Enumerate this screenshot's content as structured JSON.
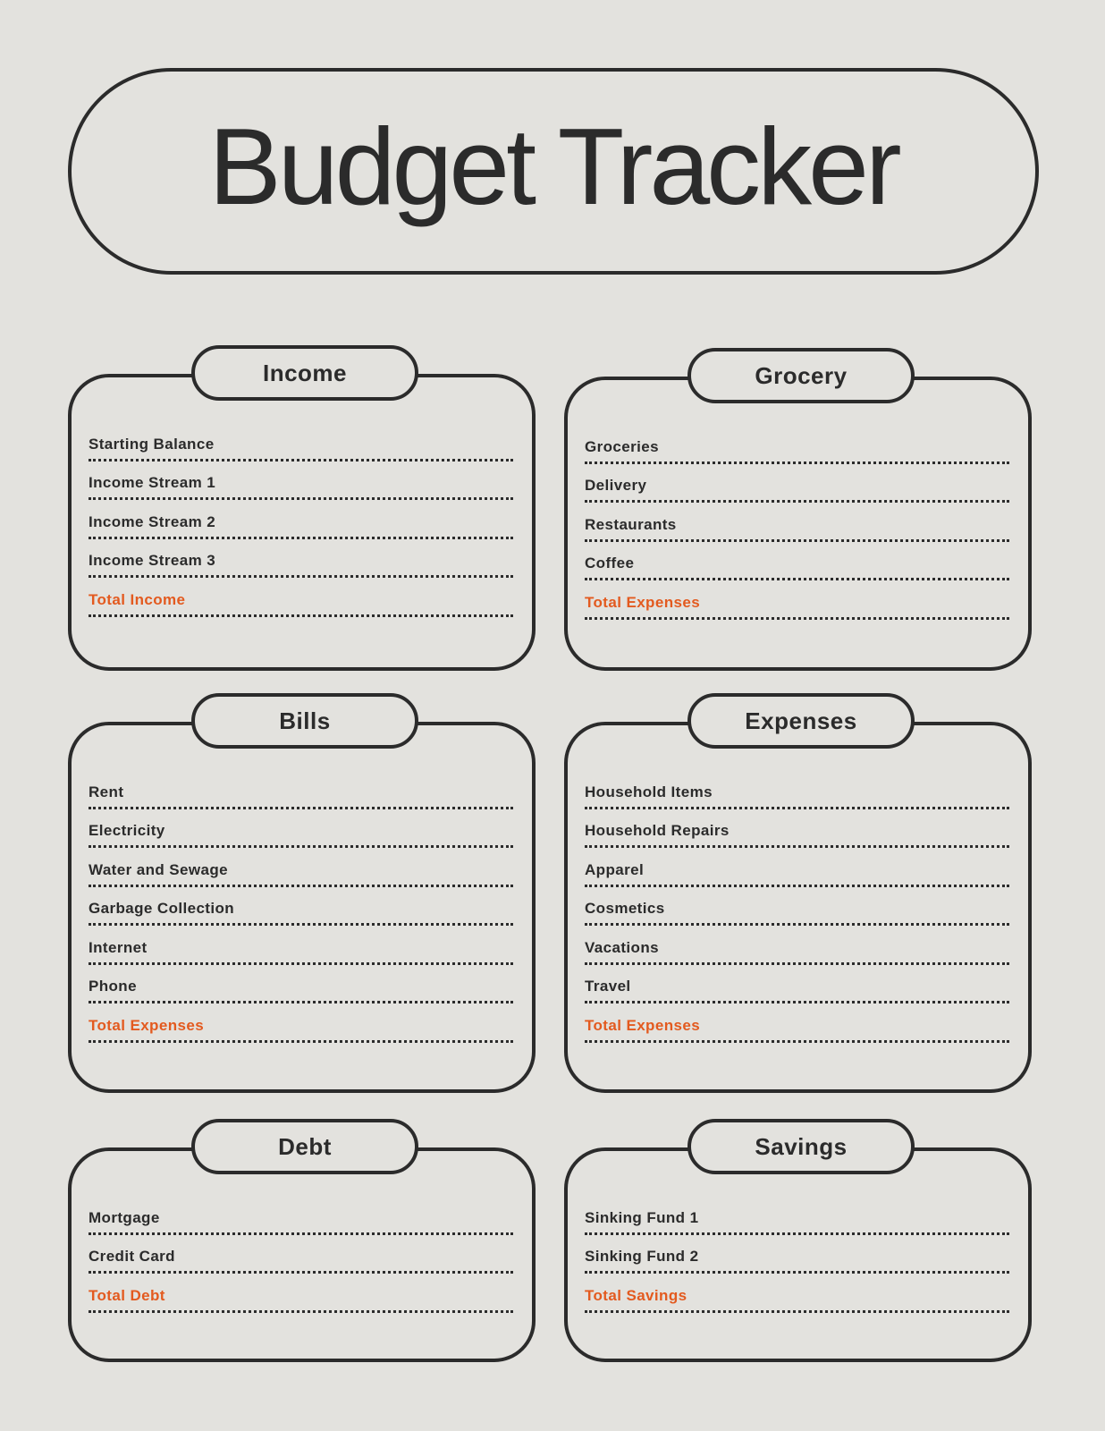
{
  "title": "Budget Tracker",
  "colors": {
    "background": "#e3e2de",
    "ink": "#2b2b2b",
    "accent": "#e35a1f"
  },
  "sections": [
    {
      "heading": "Income",
      "items": [
        "Starting Balance",
        "Income Stream 1",
        "Income Stream 2",
        "Income Stream 3"
      ],
      "total": "Total Income"
    },
    {
      "heading": "Grocery",
      "items": [
        "Groceries",
        "Delivery",
        "Restaurants",
        "Coffee"
      ],
      "total": "Total Expenses"
    },
    {
      "heading": "Bills",
      "items": [
        "Rent",
        "Electricity",
        "Water and Sewage",
        "Garbage Collection",
        "Internet",
        "Phone"
      ],
      "total": "Total Expenses"
    },
    {
      "heading": "Expenses",
      "items": [
        "Household Items",
        "Household Repairs",
        "Apparel",
        "Cosmetics",
        "Vacations",
        "Travel"
      ],
      "total": "Total Expenses"
    },
    {
      "heading": "Debt",
      "items": [
        "Mortgage",
        "Credit Card"
      ],
      "total": "Total Debt"
    },
    {
      "heading": "Savings",
      "items": [
        "Sinking Fund 1",
        "Sinking Fund 2"
      ],
      "total": "Total Savings"
    }
  ]
}
